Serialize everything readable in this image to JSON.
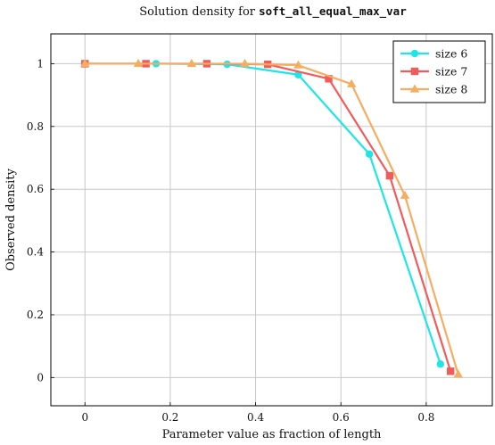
{
  "chart_data": {
    "type": "line",
    "title_prefix": "Solution density for ",
    "title_code": "soft_all_equal_max_var",
    "xlabel": "Parameter value as fraction of length",
    "ylabel": "Observed density",
    "xlim": [
      -0.08,
      0.955
    ],
    "ylim": [
      -0.09,
      1.095
    ],
    "xticks": [
      0,
      0.2,
      0.4,
      0.6,
      0.8
    ],
    "xtick_labels": [
      "0",
      "0.2",
      "0.4",
      "0.6",
      "0.8"
    ],
    "yticks": [
      0,
      0.2,
      0.4,
      0.6,
      0.8,
      1
    ],
    "ytick_labels": [
      "0",
      "0.2",
      "0.4",
      "0.6",
      "0.8",
      "1"
    ],
    "grid": true,
    "legend_position": "top-right",
    "series": [
      {
        "name": "size 6",
        "color": "#1ee6e6",
        "marker": "circle",
        "x": [
          0,
          0.1667,
          0.3333,
          0.5,
          0.6667,
          0.8333
        ],
        "y": [
          1,
          1,
          0.998,
          0.965,
          0.712,
          0.043
        ]
      },
      {
        "name": "size 7",
        "color": "#f25b5b",
        "marker": "square",
        "x": [
          0,
          0.1429,
          0.2857,
          0.4286,
          0.5714,
          0.7143,
          0.8571
        ],
        "y": [
          1,
          1,
          1,
          0.998,
          0.952,
          0.643,
          0.02
        ]
      },
      {
        "name": "size 8",
        "color": "#f5ad5f",
        "marker": "triangle",
        "x": [
          0,
          0.125,
          0.25,
          0.375,
          0.5,
          0.625,
          0.75,
          0.875
        ],
        "y": [
          1,
          1,
          1,
          1,
          0.995,
          0.935,
          0.58,
          0.01
        ]
      }
    ]
  }
}
